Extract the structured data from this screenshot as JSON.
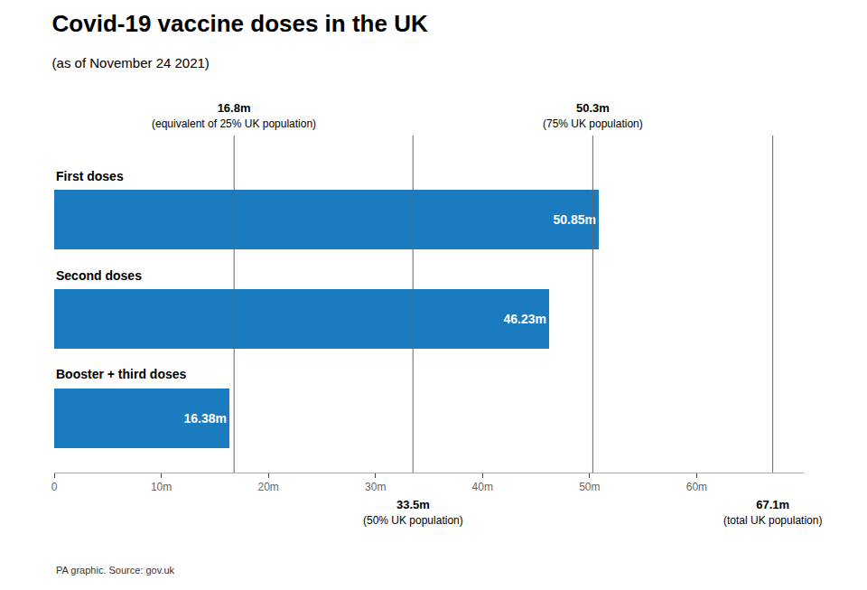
{
  "chart_data": {
    "type": "bar",
    "orientation": "horizontal",
    "title": "Covid-19 vaccine doses in the UK",
    "subtitle": "(as of November 24 2021)",
    "source": "PA graphic. Source: gov.uk",
    "categories": [
      "First doses",
      "Second doses",
      "Booster + third doses"
    ],
    "values": [
      50.85,
      46.23,
      16.38
    ],
    "value_labels": [
      "50.85m",
      "46.23m",
      "16.38m"
    ],
    "data_labels": true,
    "color": "#1a7bbf",
    "xlim": [
      0,
      70
    ],
    "xticks": [
      0,
      {
        "value": 10,
        "label": "10m"
      },
      {
        "value": 20,
        "label": "20m"
      },
      {
        "value": 30,
        "label": "30m"
      },
      {
        "value": 40,
        "label": "40m"
      },
      {
        "value": 50,
        "label": "50m"
      },
      {
        "value": 60,
        "label": "60m"
      }
    ],
    "tick_labels": "x",
    "grid": false,
    "annotations": [
      {
        "x": 16.8,
        "text": "16.8m",
        "note": "(equivalent of 25% UK population)"
      },
      {
        "x": 33.5,
        "text": "33.5m",
        "note": "(50% UK population)"
      },
      {
        "x": 50.3,
        "text": "50.3m",
        "note": "(75% UK population)"
      },
      {
        "x": 67.1,
        "text": "67.1m",
        "note": "(total UK population)"
      }
    ]
  }
}
